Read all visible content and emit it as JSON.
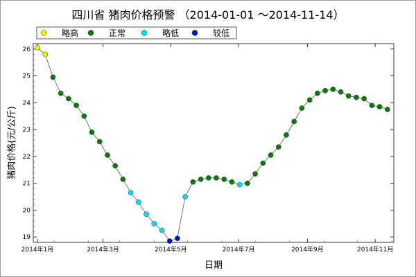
{
  "chart_data": {
    "type": "scatter",
    "title": "四川省 猪肉价格预警 （2014-01-01 ～2014-11-14）",
    "xlabel": "日期",
    "ylabel": "猪肉价格(元/公斤)",
    "ylim": [
      18.8,
      26.2
    ],
    "yticks": [
      19,
      20,
      21,
      22,
      23,
      24,
      25,
      26
    ],
    "xlim": [
      "2014-01-01",
      "2014-11-14"
    ],
    "xticks": [
      {
        "date": "2014-01-01",
        "label": "2014年1月"
      },
      {
        "date": "2014-03-01",
        "label": "2014年3月"
      },
      {
        "date": "2014-05-01",
        "label": "2014年5月"
      },
      {
        "date": "2014-07-01",
        "label": "2014年7月"
      },
      {
        "date": "2014-09-01",
        "label": "2014年9月"
      },
      {
        "date": "2014-11-01",
        "label": "2014年11月"
      }
    ],
    "legend_position": "top-left",
    "grid": false,
    "categories": [
      {
        "key": "high",
        "name": "略高",
        "color": "#f0f000"
      },
      {
        "key": "normal",
        "name": "正常",
        "color": "#0a7a0a"
      },
      {
        "key": "low",
        "name": "略低",
        "color": "#00e0f0"
      },
      {
        "key": "lower",
        "name": "较低",
        "color": "#0010d0"
      }
    ],
    "points": [
      {
        "x": "2014-01-01",
        "y": 26.05,
        "c": "high"
      },
      {
        "x": "2014-01-08",
        "y": 25.8,
        "c": "high"
      },
      {
        "x": "2014-01-15",
        "y": 24.95,
        "c": "normal"
      },
      {
        "x": "2014-01-22",
        "y": 24.35,
        "c": "normal"
      },
      {
        "x": "2014-01-29",
        "y": 24.15,
        "c": "normal"
      },
      {
        "x": "2014-02-05",
        "y": 23.9,
        "c": "normal"
      },
      {
        "x": "2014-02-12",
        "y": 23.5,
        "c": "normal"
      },
      {
        "x": "2014-02-19",
        "y": 22.9,
        "c": "normal"
      },
      {
        "x": "2014-02-26",
        "y": 22.55,
        "c": "normal"
      },
      {
        "x": "2014-03-05",
        "y": 22.05,
        "c": "normal"
      },
      {
        "x": "2014-03-12",
        "y": 21.65,
        "c": "normal"
      },
      {
        "x": "2014-03-19",
        "y": 21.15,
        "c": "normal"
      },
      {
        "x": "2014-03-26",
        "y": 20.65,
        "c": "low"
      },
      {
        "x": "2014-04-02",
        "y": 20.3,
        "c": "low"
      },
      {
        "x": "2014-04-09",
        "y": 19.85,
        "c": "low"
      },
      {
        "x": "2014-04-16",
        "y": 19.5,
        "c": "low"
      },
      {
        "x": "2014-04-23",
        "y": 19.25,
        "c": "low"
      },
      {
        "x": "2014-04-30",
        "y": 18.85,
        "c": "lower"
      },
      {
        "x": "2014-05-07",
        "y": 18.95,
        "c": "lower"
      },
      {
        "x": "2014-05-14",
        "y": 20.5,
        "c": "low"
      },
      {
        "x": "2014-05-21",
        "y": 21.05,
        "c": "normal"
      },
      {
        "x": "2014-05-28",
        "y": 21.15,
        "c": "normal"
      },
      {
        "x": "2014-06-04",
        "y": 21.2,
        "c": "normal"
      },
      {
        "x": "2014-06-11",
        "y": 21.2,
        "c": "normal"
      },
      {
        "x": "2014-06-18",
        "y": 21.15,
        "c": "normal"
      },
      {
        "x": "2014-06-25",
        "y": 21.05,
        "c": "normal"
      },
      {
        "x": "2014-07-02",
        "y": 20.95,
        "c": "low"
      },
      {
        "x": "2014-07-09",
        "y": 21.0,
        "c": "normal"
      },
      {
        "x": "2014-07-16",
        "y": 21.35,
        "c": "normal"
      },
      {
        "x": "2014-07-23",
        "y": 21.75,
        "c": "normal"
      },
      {
        "x": "2014-07-30",
        "y": 22.05,
        "c": "normal"
      },
      {
        "x": "2014-08-06",
        "y": 22.35,
        "c": "normal"
      },
      {
        "x": "2014-08-13",
        "y": 22.8,
        "c": "normal"
      },
      {
        "x": "2014-08-20",
        "y": 23.3,
        "c": "normal"
      },
      {
        "x": "2014-08-27",
        "y": 23.8,
        "c": "normal"
      },
      {
        "x": "2014-09-03",
        "y": 24.1,
        "c": "normal"
      },
      {
        "x": "2014-09-10",
        "y": 24.35,
        "c": "normal"
      },
      {
        "x": "2014-09-17",
        "y": 24.45,
        "c": "normal"
      },
      {
        "x": "2014-09-24",
        "y": 24.5,
        "c": "normal"
      },
      {
        "x": "2014-10-01",
        "y": 24.4,
        "c": "normal"
      },
      {
        "x": "2014-10-08",
        "y": 24.25,
        "c": "normal"
      },
      {
        "x": "2014-10-15",
        "y": 24.2,
        "c": "normal"
      },
      {
        "x": "2014-10-22",
        "y": 24.15,
        "c": "normal"
      },
      {
        "x": "2014-10-29",
        "y": 23.9,
        "c": "normal"
      },
      {
        "x": "2014-11-05",
        "y": 23.85,
        "c": "normal"
      },
      {
        "x": "2014-11-12",
        "y": 23.75,
        "c": "normal"
      }
    ]
  }
}
